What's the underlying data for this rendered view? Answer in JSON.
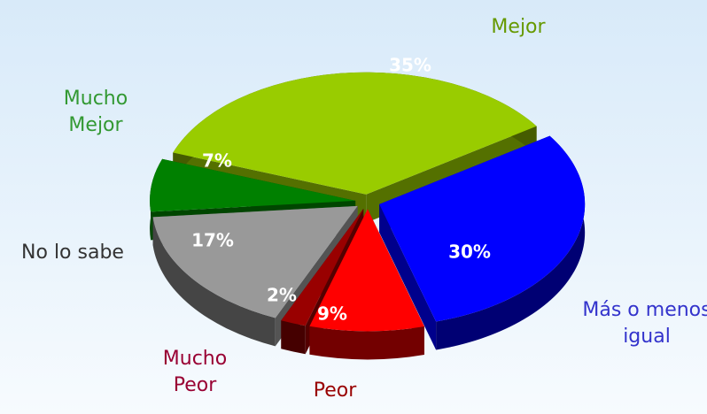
{
  "chart_data": {
    "type": "pie3d",
    "categories": [
      "Mejor",
      "Más o menos igual",
      "Peor",
      "Mucho Peor",
      "No lo sabe",
      "Mucho Mejor"
    ],
    "values": [
      35,
      30,
      9,
      2,
      17,
      7
    ],
    "value_labels": [
      "35%",
      "30%",
      "9%",
      "2%",
      "17%",
      "7%"
    ],
    "colors": [
      "#99cc00",
      "#0000ff",
      "#ff0000",
      "#990000",
      "#999999",
      "#008000"
    ],
    "label_colors": [
      "#669900",
      "#3333cc",
      "#990000",
      "#990033",
      "#333333",
      "#339933"
    ]
  }
}
